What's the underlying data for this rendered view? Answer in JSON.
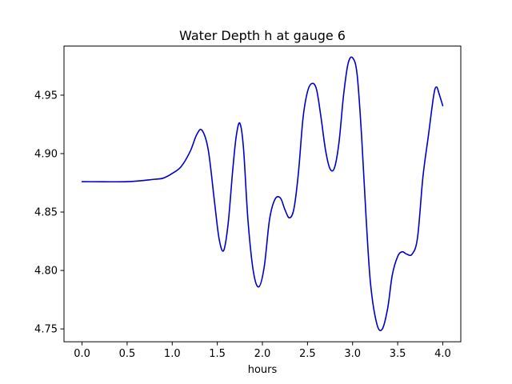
{
  "chart_data": {
    "type": "line",
    "title": "Water Depth h at gauge 6",
    "xlabel": "hours",
    "ylabel": "",
    "xlim": [
      -0.2,
      4.2
    ],
    "ylim": [
      4.739,
      4.992
    ],
    "x_ticks": [
      0.0,
      0.5,
      1.0,
      1.5,
      2.0,
      2.5,
      3.0,
      3.5,
      4.0
    ],
    "x_tick_labels": [
      "0.0",
      "0.5",
      "1.0",
      "1.5",
      "2.0",
      "2.5",
      "3.0",
      "3.5",
      "4.0"
    ],
    "y_ticks": [
      4.75,
      4.8,
      4.85,
      4.9,
      4.95
    ],
    "y_tick_labels": [
      "4.75",
      "4.80",
      "4.85",
      "4.90",
      "4.95"
    ],
    "grid": false,
    "legend": "none",
    "series": [
      {
        "color": "#0000cc",
        "x": [
          0.0,
          0.5,
          0.8,
          0.9,
          1.0,
          1.1,
          1.2,
          1.27,
          1.33,
          1.4,
          1.47,
          1.52,
          1.57,
          1.62,
          1.67,
          1.71,
          1.75,
          1.79,
          1.84,
          1.9,
          1.96,
          2.02,
          2.08,
          2.14,
          2.2,
          2.25,
          2.3,
          2.35,
          2.4,
          2.45,
          2.5,
          2.55,
          2.6,
          2.65,
          2.7,
          2.75,
          2.8,
          2.85,
          2.9,
          2.95,
          3.0,
          3.05,
          3.1,
          3.15,
          3.2,
          3.27,
          3.33,
          3.39,
          3.44,
          3.5,
          3.55,
          3.6,
          3.66,
          3.72,
          3.78,
          3.84,
          3.9,
          3.93,
          3.96,
          4.0
        ],
        "y": [
          4.876,
          4.876,
          4.878,
          4.879,
          4.883,
          4.889,
          4.902,
          4.916,
          4.92,
          4.903,
          4.858,
          4.827,
          4.817,
          4.84,
          4.885,
          4.915,
          4.926,
          4.905,
          4.843,
          4.799,
          4.786,
          4.803,
          4.844,
          4.861,
          4.862,
          4.852,
          4.845,
          4.853,
          4.884,
          4.93,
          4.953,
          4.96,
          4.955,
          4.931,
          4.903,
          4.887,
          4.888,
          4.91,
          4.95,
          4.977,
          4.982,
          4.968,
          4.915,
          4.845,
          4.788,
          4.754,
          4.75,
          4.768,
          4.796,
          4.812,
          4.816,
          4.814,
          4.814,
          4.828,
          4.88,
          4.915,
          4.95,
          4.957,
          4.951,
          4.941
        ]
      }
    ]
  }
}
